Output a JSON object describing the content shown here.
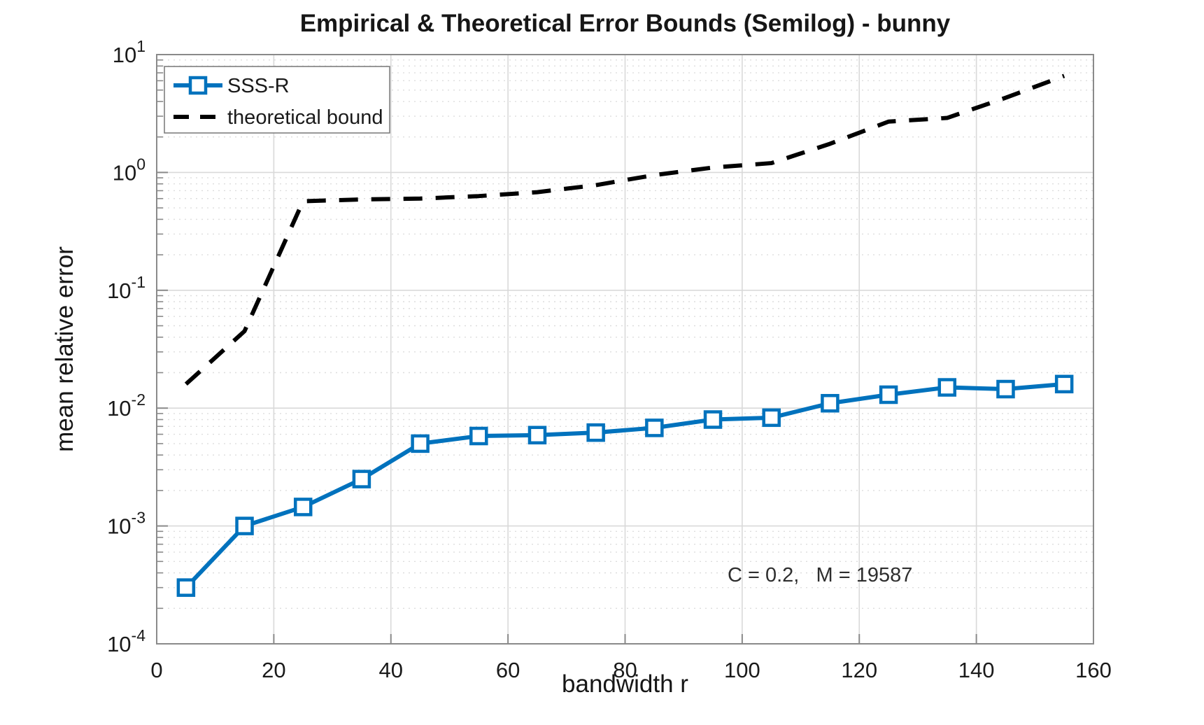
{
  "chart_data": {
    "type": "line",
    "title": "Empirical & Theoretical Error Bounds (Semilog) - bunny",
    "xlabel": "bandwidth r",
    "ylabel": "mean relative error",
    "annotation": "C = 0.2,   M = 19587",
    "yscale": "log",
    "xlim": [
      0,
      160
    ],
    "ylim": [
      0.0001,
      10
    ],
    "x_ticks": [
      0,
      20,
      40,
      60,
      80,
      100,
      120,
      140,
      160
    ],
    "y_tick_exponents": [
      1,
      0,
      -1,
      -2,
      -3,
      -4
    ],
    "grid": "on",
    "minor_grid": "on",
    "legend": {
      "position": "northwest"
    },
    "colors": {
      "series_blue": "#0072BD",
      "series_black": "#000000",
      "axis": "#8a8a8a",
      "major_grid": "#d9d9d9",
      "minor_grid": "#dddddd"
    },
    "series": [
      {
        "name": "SSS-R",
        "color": "#0072BD",
        "style": "solid",
        "marker": "square",
        "x": [
          5,
          15,
          25,
          35,
          45,
          55,
          65,
          75,
          85,
          95,
          105,
          115,
          125,
          135,
          145,
          155
        ],
        "y": [
          0.0003,
          0.001,
          0.00145,
          0.0025,
          0.005,
          0.0058,
          0.0059,
          0.0062,
          0.0068,
          0.008,
          0.0083,
          0.011,
          0.013,
          0.015,
          0.0145,
          0.016
        ]
      },
      {
        "name": "theoretical bound",
        "color": "#000000",
        "style": "dashed",
        "marker": "none",
        "x": [
          5,
          15,
          25,
          35,
          45,
          55,
          65,
          75,
          85,
          95,
          105,
          115,
          125,
          135,
          145,
          155
        ],
        "y": [
          0.016,
          0.045,
          0.57,
          0.59,
          0.6,
          0.63,
          0.68,
          0.78,
          0.95,
          1.1,
          1.2,
          1.75,
          2.7,
          2.9,
          4.3,
          6.6
        ]
      }
    ]
  }
}
